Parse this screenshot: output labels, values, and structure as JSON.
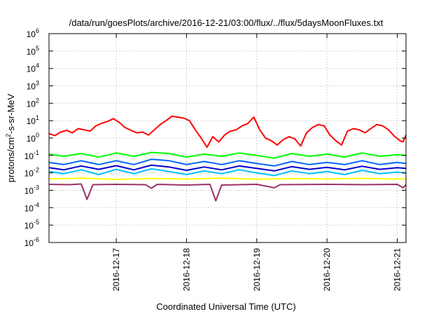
{
  "chart_data": {
    "type": "line",
    "title": "/data/run/goesPlots/archive/2016-12-21/03:00/flux/../flux/5daysMoonFluxes.txt",
    "xlabel": "Coordinated Universal Time (UTC)",
    "ylabel": {
      "base": "protons/cm",
      "sup": "2",
      "rest": "-s-sr-MeV"
    },
    "xlim": [
      "2016-12-16T01:00",
      "2016-12-21T03:00"
    ],
    "x_ticks": [
      "2016-12-17",
      "2016-12-18",
      "2016-12-19",
      "2016-12-20",
      "2016-12-21"
    ],
    "y_scale": "log",
    "ylim": [
      1e-06,
      1000000.0
    ],
    "y_ticks": [
      {
        "base": "10",
        "exp": "-6",
        "value": 1e-06
      },
      {
        "base": "10",
        "exp": "-5",
        "value": 1e-05
      },
      {
        "base": "10",
        "exp": "-4",
        "value": 0.0001
      },
      {
        "base": "10",
        "exp": "-3",
        "value": 0.001
      },
      {
        "base": "10",
        "exp": "-2",
        "value": 0.01
      },
      {
        "base": "10",
        "exp": "-1",
        "value": 0.1
      },
      {
        "base": "10",
        "exp": "0",
        "value": 1
      },
      {
        "base": "10",
        "exp": "1",
        "value": 10
      },
      {
        "base": "10",
        "exp": "2",
        "value": 100
      },
      {
        "base": "10",
        "exp": "3",
        "value": 1000
      },
      {
        "base": "10",
        "exp": "4",
        "value": 10000
      },
      {
        "base": "10",
        "exp": "5",
        "value": 100000
      },
      {
        "base": "10",
        "exp": "6",
        "value": 1000000
      }
    ],
    "grid": true,
    "legend": "none",
    "series": [
      {
        "color": "#ff0000",
        "points": [
          [
            "2016-12-16T01:00",
            1.8
          ],
          [
            "2016-12-16T03:00",
            1.4
          ],
          [
            "2016-12-16T05:00",
            2.2
          ],
          [
            "2016-12-16T07:00",
            2.8
          ],
          [
            "2016-12-16T09:00",
            2.0
          ],
          [
            "2016-12-16T11:00",
            3.5
          ],
          [
            "2016-12-16T13:00",
            3.0
          ],
          [
            "2016-12-16T15:00",
            2.5
          ],
          [
            "2016-12-16T17:00",
            5.0
          ],
          [
            "2016-12-16T19:00",
            7.0
          ],
          [
            "2016-12-16T21:00",
            9.0
          ],
          [
            "2016-12-16T23:00",
            13.0
          ],
          [
            "2016-12-17T01:00",
            8.0
          ],
          [
            "2016-12-17T03:00",
            4.0
          ],
          [
            "2016-12-17T05:00",
            2.8
          ],
          [
            "2016-12-17T07:00",
            2.0
          ],
          [
            "2016-12-17T09:00",
            2.2
          ],
          [
            "2016-12-17T11:00",
            1.5
          ],
          [
            "2016-12-17T13:00",
            3.0
          ],
          [
            "2016-12-17T15:00",
            6.0
          ],
          [
            "2016-12-17T17:00",
            10.0
          ],
          [
            "2016-12-17T19:00",
            18.0
          ],
          [
            "2016-12-17T21:00",
            16.0
          ],
          [
            "2016-12-17T23:00",
            14.0
          ],
          [
            "2016-12-18T01:00",
            10.0
          ],
          [
            "2016-12-18T03:00",
            3.0
          ],
          [
            "2016-12-18T05:00",
            1.0
          ],
          [
            "2016-12-18T07:00",
            0.3
          ],
          [
            "2016-12-18T09:00",
            1.2
          ],
          [
            "2016-12-18T11:00",
            0.6
          ],
          [
            "2016-12-18T13:00",
            1.5
          ],
          [
            "2016-12-18T15:00",
            2.5
          ],
          [
            "2016-12-18T17:00",
            3.0
          ],
          [
            "2016-12-18T19:00",
            5.0
          ],
          [
            "2016-12-18T21:00",
            7.0
          ],
          [
            "2016-12-18T23:00",
            16.0
          ],
          [
            "2016-12-19T01:00",
            3.0
          ],
          [
            "2016-12-19T03:00",
            1.0
          ],
          [
            "2016-12-19T05:00",
            0.7
          ],
          [
            "2016-12-19T07:00",
            0.4
          ],
          [
            "2016-12-19T09:00",
            0.8
          ],
          [
            "2016-12-19T11:00",
            1.2
          ],
          [
            "2016-12-19T13:00",
            0.9
          ],
          [
            "2016-12-19T15:00",
            0.35
          ],
          [
            "2016-12-19T17:00",
            2.0
          ],
          [
            "2016-12-19T19:00",
            4.0
          ],
          [
            "2016-12-19T21:00",
            6.0
          ],
          [
            "2016-12-19T23:00",
            5.0
          ],
          [
            "2016-12-20T01:00",
            1.5
          ],
          [
            "2016-12-20T03:00",
            0.7
          ],
          [
            "2016-12-20T05:00",
            0.4
          ],
          [
            "2016-12-20T07:00",
            2.5
          ],
          [
            "2016-12-20T09:00",
            3.5
          ],
          [
            "2016-12-20T11:00",
            3.0
          ],
          [
            "2016-12-20T13:00",
            2.0
          ],
          [
            "2016-12-20T15:00",
            3.5
          ],
          [
            "2016-12-20T17:00",
            6.0
          ],
          [
            "2016-12-20T19:00",
            5.0
          ],
          [
            "2016-12-20T21:00",
            3.0
          ],
          [
            "2016-12-20T23:00",
            1.3
          ],
          [
            "2016-12-21T01:00",
            0.7
          ],
          [
            "2016-12-21T02:00",
            0.6
          ],
          [
            "2016-12-21T03:00",
            1.5
          ]
        ]
      },
      {
        "color": "#00ff00",
        "points": [
          [
            "2016-12-16T01:00",
            0.12
          ],
          [
            "2016-12-16T06:00",
            0.09
          ],
          [
            "2016-12-16T12:00",
            0.13
          ],
          [
            "2016-12-16T18:00",
            0.08
          ],
          [
            "2016-12-17T00:00",
            0.14
          ],
          [
            "2016-12-17T06:00",
            0.09
          ],
          [
            "2016-12-17T12:00",
            0.15
          ],
          [
            "2016-12-17T18:00",
            0.13
          ],
          [
            "2016-12-18T00:00",
            0.08
          ],
          [
            "2016-12-18T06:00",
            0.12
          ],
          [
            "2016-12-18T12:00",
            0.09
          ],
          [
            "2016-12-18T18:00",
            0.14
          ],
          [
            "2016-12-19T00:00",
            0.1
          ],
          [
            "2016-12-19T06:00",
            0.07
          ],
          [
            "2016-12-19T12:00",
            0.13
          ],
          [
            "2016-12-19T18:00",
            0.09
          ],
          [
            "2016-12-20T00:00",
            0.12
          ],
          [
            "2016-12-20T06:00",
            0.08
          ],
          [
            "2016-12-20T12:00",
            0.14
          ],
          [
            "2016-12-20T18:00",
            0.09
          ],
          [
            "2016-12-21T00:00",
            0.11
          ],
          [
            "2016-12-21T03:00",
            0.1
          ]
        ]
      },
      {
        "color": "#0066ff",
        "points": [
          [
            "2016-12-16T01:00",
            0.04
          ],
          [
            "2016-12-16T06:00",
            0.03
          ],
          [
            "2016-12-16T12:00",
            0.05
          ],
          [
            "2016-12-16T18:00",
            0.03
          ],
          [
            "2016-12-17T00:00",
            0.05
          ],
          [
            "2016-12-17T06:00",
            0.03
          ],
          [
            "2016-12-17T12:00",
            0.06
          ],
          [
            "2016-12-17T18:00",
            0.05
          ],
          [
            "2016-12-18T00:00",
            0.03
          ],
          [
            "2016-12-18T06:00",
            0.045
          ],
          [
            "2016-12-18T12:00",
            0.03
          ],
          [
            "2016-12-18T18:00",
            0.05
          ],
          [
            "2016-12-19T00:00",
            0.035
          ],
          [
            "2016-12-19T06:00",
            0.025
          ],
          [
            "2016-12-19T12:00",
            0.045
          ],
          [
            "2016-12-19T18:00",
            0.03
          ],
          [
            "2016-12-20T00:00",
            0.04
          ],
          [
            "2016-12-20T06:00",
            0.03
          ],
          [
            "2016-12-20T12:00",
            0.05
          ],
          [
            "2016-12-20T18:00",
            0.03
          ],
          [
            "2016-12-21T00:00",
            0.04
          ],
          [
            "2016-12-21T03:00",
            0.035
          ]
        ]
      },
      {
        "color": "#00bfff",
        "points": [
          [
            "2016-12-16T01:00",
            0.012
          ],
          [
            "2016-12-16T06:00",
            0.009
          ],
          [
            "2016-12-16T12:00",
            0.015
          ],
          [
            "2016-12-16T18:00",
            0.008
          ],
          [
            "2016-12-17T00:00",
            0.016
          ],
          [
            "2016-12-17T06:00",
            0.009
          ],
          [
            "2016-12-17T12:00",
            0.017
          ],
          [
            "2016-12-17T18:00",
            0.012
          ],
          [
            "2016-12-18T00:00",
            0.008
          ],
          [
            "2016-12-18T06:00",
            0.013
          ],
          [
            "2016-12-18T12:00",
            0.009
          ],
          [
            "2016-12-18T18:00",
            0.015
          ],
          [
            "2016-12-19T00:00",
            0.01
          ],
          [
            "2016-12-19T06:00",
            0.007
          ],
          [
            "2016-12-19T12:00",
            0.013
          ],
          [
            "2016-12-19T18:00",
            0.009
          ],
          [
            "2016-12-20T00:00",
            0.012
          ],
          [
            "2016-12-20T06:00",
            0.008
          ],
          [
            "2016-12-20T12:00",
            0.014
          ],
          [
            "2016-12-20T18:00",
            0.009
          ],
          [
            "2016-12-21T00:00",
            0.011
          ],
          [
            "2016-12-21T03:00",
            0.01
          ]
        ]
      },
      {
        "color": "#0000cc",
        "points": [
          [
            "2016-12-16T01:00",
            0.02
          ],
          [
            "2016-12-16T06:00",
            0.015
          ],
          [
            "2016-12-16T12:00",
            0.025
          ],
          [
            "2016-12-16T18:00",
            0.016
          ],
          [
            "2016-12-17T00:00",
            0.026
          ],
          [
            "2016-12-17T06:00",
            0.015
          ],
          [
            "2016-12-17T12:00",
            0.028
          ],
          [
            "2016-12-17T18:00",
            0.022
          ],
          [
            "2016-12-18T00:00",
            0.014
          ],
          [
            "2016-12-18T06:00",
            0.022
          ],
          [
            "2016-12-18T12:00",
            0.015
          ],
          [
            "2016-12-18T18:00",
            0.025
          ],
          [
            "2016-12-19T00:00",
            0.018
          ],
          [
            "2016-12-19T06:00",
            0.013
          ],
          [
            "2016-12-19T12:00",
            0.023
          ],
          [
            "2016-12-19T18:00",
            0.016
          ],
          [
            "2016-12-20T00:00",
            0.021
          ],
          [
            "2016-12-20T06:00",
            0.015
          ],
          [
            "2016-12-20T12:00",
            0.024
          ],
          [
            "2016-12-20T18:00",
            0.016
          ],
          [
            "2016-12-21T00:00",
            0.02
          ],
          [
            "2016-12-21T03:00",
            0.018
          ]
        ]
      },
      {
        "color": "#ffff00",
        "points": [
          [
            "2016-12-16T01:00",
            0.0045
          ],
          [
            "2016-12-16T12:00",
            0.005
          ],
          [
            "2016-12-17T00:00",
            0.0042
          ],
          [
            "2016-12-17T12:00",
            0.0048
          ],
          [
            "2016-12-18T00:00",
            0.0044
          ],
          [
            "2016-12-18T12:00",
            0.005
          ],
          [
            "2016-12-19T00:00",
            0.0043
          ],
          [
            "2016-12-19T12:00",
            0.0047
          ],
          [
            "2016-12-20T00:00",
            0.0045
          ],
          [
            "2016-12-20T12:00",
            0.0049
          ],
          [
            "2016-12-21T00:00",
            0.0044
          ],
          [
            "2016-12-21T03:00",
            0.0046
          ]
        ]
      },
      {
        "color": "#993366",
        "points": [
          [
            "2016-12-16T01:00",
            0.0022
          ],
          [
            "2016-12-16T08:00",
            0.0021
          ],
          [
            "2016-12-16T12:00",
            0.0023
          ],
          [
            "2016-12-16T14:00",
            0.0003
          ],
          [
            "2016-12-16T16:00",
            0.0021
          ],
          [
            "2016-12-17T00:00",
            0.0022
          ],
          [
            "2016-12-17T10:00",
            0.0021
          ],
          [
            "2016-12-17T12:00",
            0.0013
          ],
          [
            "2016-12-17T14:00",
            0.0022
          ],
          [
            "2016-12-18T00:00",
            0.002
          ],
          [
            "2016-12-18T08:00",
            0.0022
          ],
          [
            "2016-12-18T10:00",
            0.00025
          ],
          [
            "2016-12-18T12:00",
            0.002
          ],
          [
            "2016-12-19T00:00",
            0.0022
          ],
          [
            "2016-12-19T06:00",
            0.0014
          ],
          [
            "2016-12-19T08:00",
            0.0021
          ],
          [
            "2016-12-20T00:00",
            0.0022
          ],
          [
            "2016-12-20T12:00",
            0.0021
          ],
          [
            "2016-12-21T00:00",
            0.0022
          ],
          [
            "2016-12-21T02:00",
            0.0014
          ],
          [
            "2016-12-21T03:00",
            0.0021
          ]
        ]
      }
    ]
  }
}
